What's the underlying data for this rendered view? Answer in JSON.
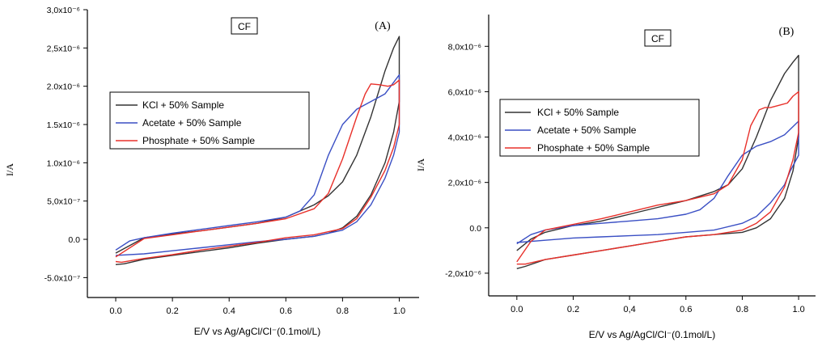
{
  "chart_data": [
    {
      "type": "line",
      "panel_label": "(A)",
      "tag": "CF",
      "xlabel": "E/V vs Ag/AgCl/Cl⁻(0.1mol/L)",
      "ylabel": "I/A",
      "xlim": [
        -0.1,
        1.07
      ],
      "ylim": [
        -7.6e-07,
        3e-06
      ],
      "x_ticks": [
        0.0,
        0.2,
        0.4,
        0.6,
        0.8,
        1.0
      ],
      "x_tick_labels": [
        "0.0",
        "0.2",
        "0.4",
        "0.6",
        "0.8",
        "1.0"
      ],
      "y_ticks": [
        -5e-07,
        0.0,
        5e-07,
        1e-06,
        1.5e-06,
        2e-06,
        2.5e-06,
        3e-06
      ],
      "y_tick_labels": [
        "-5.0x10⁻⁷",
        "0.0",
        "5,0x10⁻⁷",
        "1.0x10⁻⁶",
        "1.5x10⁻⁶",
        "2.0x10⁻⁶",
        "2,5x10⁻⁶",
        "3,0x10⁻⁶"
      ],
      "grid": false,
      "legend_position": "upper-left",
      "series": [
        {
          "name": "KCl + 50% Sample",
          "color": "#333333",
          "x": [
            0.0,
            0.1,
            0.2,
            0.3,
            0.4,
            0.5,
            0.6,
            0.7,
            0.75,
            0.8,
            0.85,
            0.9,
            0.95,
            0.98,
            1.0,
            1.0,
            0.98,
            0.95,
            0.9,
            0.85,
            0.8,
            0.75,
            0.7,
            0.6,
            0.5,
            0.4,
            0.3,
            0.2,
            0.1,
            0.03,
            0.0
          ],
          "y": [
            -1.8e-07,
            2e-08,
            7e-08,
            1.1e-07,
            1.6e-07,
            2.1e-07,
            2.9e-07,
            4.5e-07,
            5.7e-07,
            7.5e-07,
            1.1e-06,
            1.6e-06,
            2.2e-06,
            2.5e-06,
            2.65e-06,
            1.8e-06,
            1.4e-06,
            1e-06,
            5.8e-07,
            3e-07,
            1.5e-07,
            8e-08,
            4e-08,
            0.0,
            -5e-08,
            -1.1e-07,
            -1.6e-07,
            -2.1e-07,
            -2.6e-07,
            -3.2e-07,
            -3.3e-07
          ]
        },
        {
          "name": "Acetate + 50% Sample",
          "color": "#3a4fc4",
          "x": [
            0.0,
            0.05,
            0.1,
            0.2,
            0.3,
            0.4,
            0.5,
            0.6,
            0.65,
            0.7,
            0.75,
            0.8,
            0.85,
            0.9,
            0.95,
            0.98,
            1.0,
            1.0,
            0.98,
            0.95,
            0.9,
            0.85,
            0.8,
            0.7,
            0.6,
            0.5,
            0.4,
            0.3,
            0.2,
            0.1,
            0.0
          ],
          "y": [
            -1.4e-07,
            -2e-08,
            2e-08,
            8e-08,
            1.3e-07,
            1.8e-07,
            2.3e-07,
            2.9e-07,
            3.7e-07,
            5.8e-07,
            1.1e-06,
            1.5e-06,
            1.7e-06,
            1.8e-06,
            1.9e-06,
            2.05e-06,
            2.15e-06,
            1.4e-06,
            1.1e-06,
            8e-07,
            4.5e-07,
            2.3e-07,
            1.2e-07,
            4e-08,
            0.0,
            -3e-08,
            -7e-08,
            -1.1e-07,
            -1.5e-07,
            -1.9e-07,
            -2.1e-07
          ]
        },
        {
          "name": "Phosphate + 50% Sample",
          "color": "#e8302a",
          "x": [
            0.0,
            0.1,
            0.2,
            0.3,
            0.4,
            0.5,
            0.6,
            0.7,
            0.75,
            0.8,
            0.85,
            0.88,
            0.9,
            0.93,
            0.96,
            0.98,
            1.0,
            1.0,
            0.98,
            0.95,
            0.9,
            0.85,
            0.8,
            0.7,
            0.6,
            0.5,
            0.4,
            0.3,
            0.2,
            0.1,
            0.02,
            0.0
          ],
          "y": [
            -2.3e-07,
            1e-08,
            6e-08,
            1.1e-07,
            1.6e-07,
            2.1e-07,
            2.7e-07,
            4e-07,
            6e-07,
            1.05e-06,
            1.6e-06,
            1.9e-06,
            2.03e-06,
            2.02e-06,
            2e-06,
            2.02e-06,
            2.08e-06,
            1.5e-06,
            1.2e-06,
            9e-07,
            5.5e-07,
            2.7e-07,
            1.4e-07,
            6e-08,
            2e-08,
            -4e-08,
            -9e-08,
            -1.4e-07,
            -2e-07,
            -2.5e-07,
            -3e-07,
            -2.9e-07
          ]
        }
      ]
    },
    {
      "type": "line",
      "panel_label": "(B)",
      "tag": "CF",
      "xlabel": "E/V vs Ag/AgCl/Cl⁻(0.1mol/L)",
      "ylabel": "I/A",
      "xlim": [
        -0.1,
        1.06
      ],
      "ylim": [
        -3e-06,
        9.4e-06
      ],
      "x_ticks": [
        0.0,
        0.2,
        0.4,
        0.6,
        0.8,
        1.0
      ],
      "x_tick_labels": [
        "0.0",
        "0.2",
        "0,4",
        "0.6",
        "0.8",
        "1.0"
      ],
      "y_ticks": [
        -2e-06,
        0.0,
        2e-06,
        4e-06,
        6e-06,
        8e-06
      ],
      "y_tick_labels": [
        "-2,0x10⁻⁶",
        "0.0",
        "2,0x10⁻⁶",
        "4,0x10⁻⁶",
        "6,0x10⁻⁶",
        "8,0x10⁻⁶"
      ],
      "grid": false,
      "legend_position": "upper-left",
      "series": [
        {
          "name": "KCl + 50% Sample",
          "color": "#333333",
          "x": [
            0.0,
            0.05,
            0.1,
            0.2,
            0.3,
            0.4,
            0.5,
            0.6,
            0.7,
            0.75,
            0.8,
            0.85,
            0.9,
            0.95,
            0.98,
            1.0,
            1.0,
            0.98,
            0.95,
            0.9,
            0.85,
            0.8,
            0.7,
            0.6,
            0.5,
            0.4,
            0.3,
            0.2,
            0.1,
            0.03,
            0.0
          ],
          "y": [
            -1e-06,
            -5e-07,
            -2e-07,
            1e-07,
            3e-07,
            6e-07,
            9e-07,
            1.2e-06,
            1.6e-06,
            1.9e-06,
            2.6e-06,
            4e-06,
            5.6e-06,
            6.8e-06,
            7.3e-06,
            7.6e-06,
            4e-06,
            2.5e-06,
            1.3e-06,
            4e-07,
            0.0,
            -2e-07,
            -3e-07,
            -4e-07,
            -6e-07,
            -8e-07,
            -1e-06,
            -1.2e-06,
            -1.4e-06,
            -1.7e-06,
            -1.8e-06
          ]
        },
        {
          "name": "Acetate + 50% Sample",
          "color": "#3a4fc4",
          "x": [
            0.0,
            0.05,
            0.1,
            0.2,
            0.3,
            0.4,
            0.5,
            0.6,
            0.65,
            0.7,
            0.75,
            0.8,
            0.85,
            0.9,
            0.95,
            1.0,
            1.0,
            0.97,
            0.95,
            0.9,
            0.85,
            0.8,
            0.7,
            0.6,
            0.5,
            0.4,
            0.3,
            0.2,
            0.1,
            0.0
          ],
          "y": [
            -7e-07,
            -3e-07,
            -1e-07,
            1e-07,
            2e-07,
            3e-07,
            4e-07,
            6e-07,
            8e-07,
            1.3e-06,
            2.3e-06,
            3.2e-06,
            3.6e-06,
            3.8e-06,
            4.1e-06,
            4.7e-06,
            3.2e-06,
            2.5e-06,
            1.9e-06,
            1.1e-06,
            5e-07,
            2e-07,
            -1e-07,
            -2e-07,
            -3e-07,
            -3.5e-07,
            -4e-07,
            -4.5e-07,
            -5.5e-07,
            -6.5e-07
          ]
        },
        {
          "name": "Phosphate + 50% Sample",
          "color": "#e8302a",
          "x": [
            0.0,
            0.05,
            0.1,
            0.2,
            0.3,
            0.4,
            0.5,
            0.6,
            0.7,
            0.75,
            0.8,
            0.83,
            0.86,
            0.88,
            0.9,
            0.93,
            0.96,
            0.98,
            1.0,
            1.0,
            0.98,
            0.95,
            0.9,
            0.85,
            0.8,
            0.7,
            0.6,
            0.5,
            0.4,
            0.3,
            0.2,
            0.1,
            0.03,
            0.0
          ],
          "y": [
            -1.5e-06,
            -6e-07,
            -1e-07,
            1.5e-07,
            4e-07,
            7e-07,
            1e-06,
            1.2e-06,
            1.5e-06,
            1.9e-06,
            3e-06,
            4.5e-06,
            5.2e-06,
            5.3e-06,
            5.3e-06,
            5.4e-06,
            5.5e-06,
            5.8e-06,
            6e-06,
            4.2e-06,
            3e-06,
            1.8e-06,
            7e-07,
            2e-07,
            -1e-07,
            -3e-07,
            -4e-07,
            -6e-07,
            -8e-07,
            -1e-06,
            -1.2e-06,
            -1.4e-06,
            -1.6e-06,
            -1.6e-06
          ]
        }
      ]
    }
  ]
}
